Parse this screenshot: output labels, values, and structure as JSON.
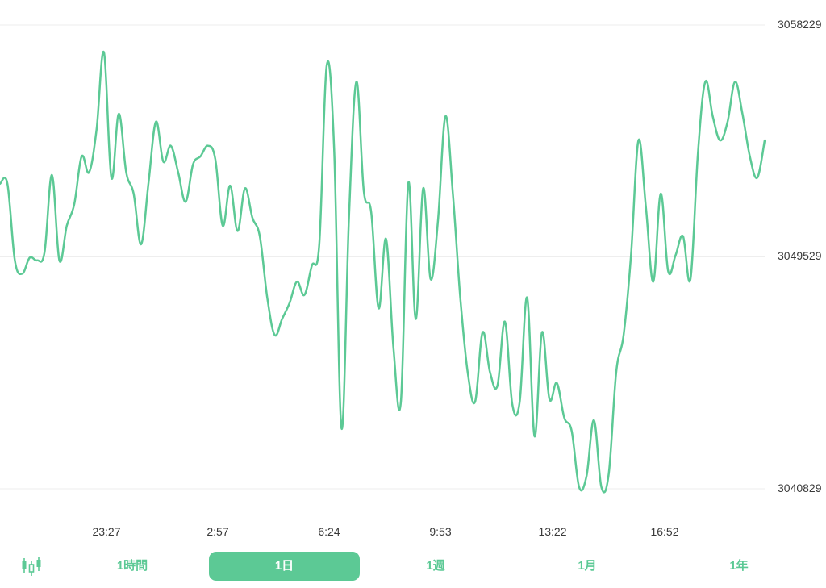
{
  "colors": {
    "line": "#5cc995",
    "grid": "#eeeeee",
    "accent": "#5cc995"
  },
  "chart_data": {
    "type": "line",
    "title": "",
    "xlabel": "",
    "ylabel": "",
    "ylim": [
      3040829,
      3058229
    ],
    "yticks": [
      "3058229",
      "3049529",
      "3040829"
    ],
    "xtick_labels": [
      "23:27",
      "2:57",
      "6:24",
      "9:53",
      "13:22",
      "16:52"
    ],
    "grid": true,
    "series": [
      {
        "values": [
          3052270,
          3052270,
          3049400,
          3048900,
          3049500,
          3049400,
          3049700,
          3052600,
          3049400,
          3050700,
          3051500,
          3053300,
          3052700,
          3054300,
          3057200,
          3052500,
          3054900,
          3052700,
          3051900,
          3050000,
          3052300,
          3054600,
          3053100,
          3053700,
          3052700,
          3051600,
          3053000,
          3053300,
          3053700,
          3053200,
          3050700,
          3052200,
          3050500,
          3052100,
          3051000,
          3050300,
          3048000,
          3046600,
          3047200,
          3047800,
          3048600,
          3048100,
          3049200,
          3050000,
          3056700,
          3053600,
          3043100,
          3051000,
          3056100,
          3052000,
          3051200,
          3047600,
          3050200,
          3046100,
          3044100,
          3052300,
          3047200,
          3052100,
          3048700,
          3050900,
          3054800,
          3051900,
          3048000,
          3045200,
          3044100,
          3046700,
          3045200,
          3044700,
          3047100,
          3044000,
          3044100,
          3048000,
          3042800,
          3046700,
          3044200,
          3044800,
          3043500,
          3043000,
          3040900,
          3041300,
          3043400,
          3040900,
          3041400,
          3045200,
          3046600,
          3049600,
          3053900,
          3051400,
          3048600,
          3051900,
          3049000,
          3049600,
          3050300,
          3048700,
          3053400,
          3056100,
          3054800,
          3053900,
          3054600,
          3056100,
          3054900,
          3053300,
          3052500,
          3053900
        ]
      }
    ]
  },
  "timeframes": {
    "candlestick_icon": "candlestick-chart-icon",
    "items": [
      {
        "label": "1時間"
      },
      {
        "label": "1日"
      },
      {
        "label": "1週"
      },
      {
        "label": "1月"
      },
      {
        "label": "1年"
      }
    ],
    "selected": "1日"
  }
}
